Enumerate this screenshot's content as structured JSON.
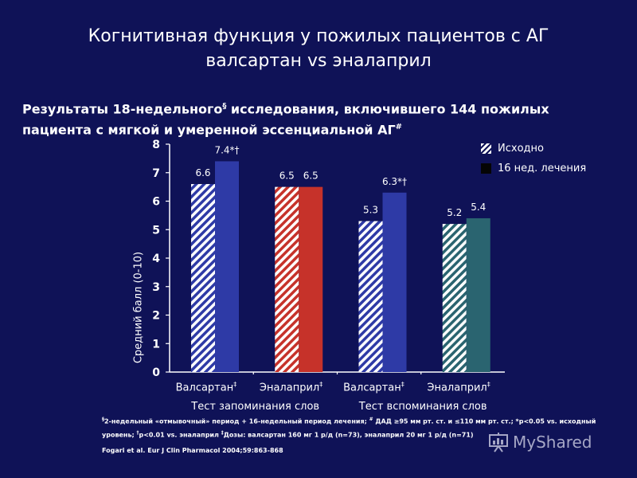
{
  "header": {
    "title_line1": "Когнитивная функция у пожилых пациентов с АГ",
    "title_line2": "валсартан vs эналаприл"
  },
  "subtitle": {
    "part1": "Результаты 18-недельного",
    "sup1": "§",
    "part2": " исследования, включившего 144 пожилых пациента с мягкой и умеренной эссенциальной АГ",
    "sup2": "#"
  },
  "legend": {
    "baseline": "Исходно",
    "treatment": "16 нед. лечения"
  },
  "chart_data": {
    "type": "bar",
    "ylabel": "Средний балл (0-10)",
    "ylim": [
      0,
      8
    ],
    "yticks": [
      "0",
      "1",
      "2",
      "3",
      "4",
      "5",
      "6",
      "7",
      "8"
    ],
    "groups": [
      {
        "label": "Валсартан",
        "sup": "‡",
        "test": "memorization",
        "color": "#2e3aa6",
        "baseline": 6.6,
        "baseline_label": "6.6",
        "treatment": 7.4,
        "treatment_label": "7.4*†"
      },
      {
        "label": "Эналаприл",
        "sup": "‡",
        "test": "memorization",
        "color": "#c6322a",
        "baseline": 6.5,
        "baseline_label": "6.5",
        "treatment": 6.5,
        "treatment_label": "6.5"
      },
      {
        "label": "Валсартан",
        "sup": "‡",
        "test": "recall",
        "color": "#2e3aa6",
        "baseline": 5.3,
        "baseline_label": "5.3",
        "treatment": 6.3,
        "treatment_label": "6.3*†"
      },
      {
        "label": "Эналаприл",
        "sup": "‡",
        "test": "recall",
        "color": "#2a6470",
        "baseline": 5.2,
        "baseline_label": "5.2",
        "treatment": 5.4,
        "treatment_label": "5.4"
      }
    ],
    "tests": [
      {
        "id": "memorization",
        "label": "Тест запоминания слов"
      },
      {
        "id": "recall",
        "label": "Тест вспоминания слов"
      }
    ],
    "hatch_stripe_color": "#ffffff"
  },
  "footnote": {
    "line1_sup": "§",
    "line1": "2-недельный «отмывочный» период + 16-недельный период лечения; ",
    "line1_sup2": "#",
    "line1b": " ДАД ≥95 мм рт. ст. и ≤110 мм рт. ст.; *p<0.05 vs. исходный",
    "line2": "уровень; ",
    "line2_sup": "†",
    "line2b": "p<0.01 vs. эналаприл ",
    "line2_sup2": "‡",
    "line2c": "Дозы: валсартан 160 мг 1 р/д (n=73), эналаприл 20 мг 1 р/д (n=71)"
  },
  "reference": "Fogari et al. Eur J Clin Pharmacol 2004;59:863-868",
  "watermark": {
    "text": "MyShared",
    "icon": "presentation-board-icon"
  }
}
